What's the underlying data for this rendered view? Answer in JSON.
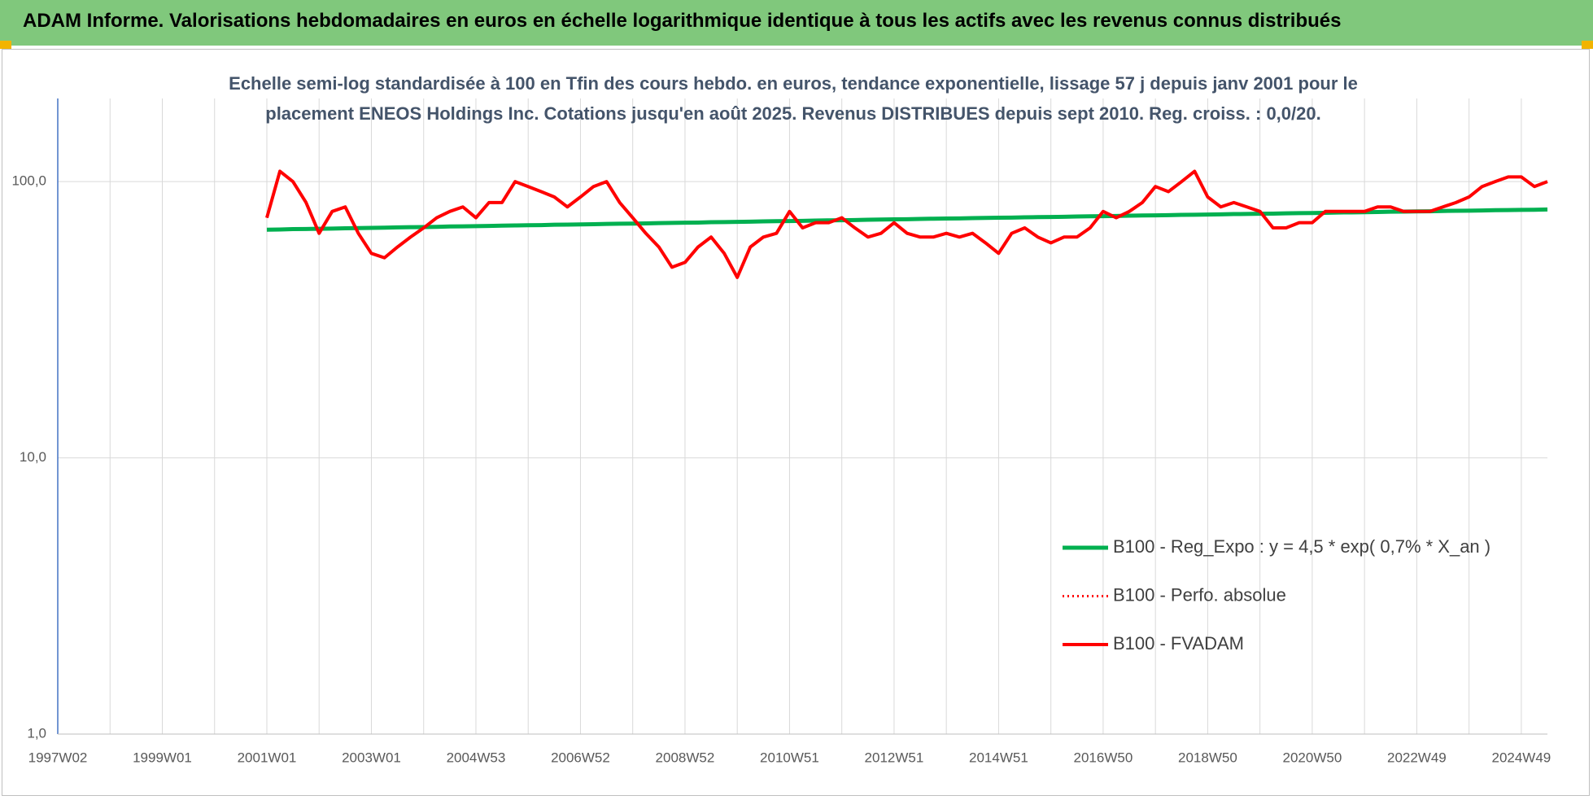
{
  "header": "ADAM Informe. Valorisations hebdomadaires en euros en échelle logarithmique identique à tous les actifs avec les revenus connus distribués",
  "chart_data": {
    "type": "line",
    "title": "Echelle semi-log standardisée à 100 en Tfin des cours hebdo. en euros, tendance exponentielle, lissage 57 j depuis janv 2001 pour le placement ENEOS Holdings Inc. Cotations jusqu'en août 2025. Revenus DISTRIBUES depuis sept 2010. Reg. croiss. : 0,0/20.",
    "log_scale": true,
    "grid": true,
    "legend": "right",
    "ylim": [
      1,
      200
    ],
    "yticks": [
      {
        "value": 1,
        "label": "1,0"
      },
      {
        "value": 10,
        "label": "10,0"
      },
      {
        "value": 100,
        "label": "100,0"
      }
    ],
    "categories": [
      "1997W02",
      null,
      null,
      null,
      null,
      null,
      null,
      null,
      "1999W01",
      null,
      null,
      null,
      null,
      null,
      null,
      null,
      "2001W01",
      null,
      null,
      null,
      null,
      null,
      null,
      null,
      "2003W01",
      null,
      null,
      null,
      null,
      null,
      null,
      null,
      "2004W53",
      null,
      null,
      null,
      null,
      null,
      null,
      null,
      "2006W52",
      null,
      null,
      null,
      null,
      null,
      null,
      null,
      "2008W52",
      null,
      null,
      null,
      null,
      null,
      null,
      null,
      "2010W51",
      null,
      null,
      null,
      null,
      null,
      null,
      null,
      "2012W51",
      null,
      null,
      null,
      null,
      null,
      null,
      null,
      "2014W51",
      null,
      null,
      null,
      null,
      null,
      null,
      null,
      "2016W50",
      null,
      null,
      null,
      null,
      null,
      null,
      null,
      "2018W50",
      null,
      null,
      null,
      null,
      null,
      null,
      null,
      "2020W50",
      null,
      null,
      null,
      null,
      null,
      null,
      null,
      "2022W49",
      null,
      null,
      null,
      null,
      null,
      null,
      null,
      "2024W49",
      null,
      null
    ],
    "series": [
      {
        "name": "B100 - Reg_Expo : y = 4,5 * exp( 0,7% *  X_an )",
        "color": "#00b050",
        "style": "solid",
        "width": 5,
        "values": [
          null,
          null,
          null,
          null,
          null,
          null,
          null,
          null,
          null,
          null,
          null,
          null,
          null,
          null,
          null,
          null,
          67.0,
          67.1,
          67.3,
          67.4,
          67.5,
          67.6,
          67.8,
          67.9,
          68.0,
          68.1,
          68.3,
          68.4,
          68.5,
          68.6,
          68.8,
          68.9,
          69.0,
          69.1,
          69.3,
          69.4,
          69.5,
          69.6,
          69.8,
          69.9,
          70.0,
          70.1,
          70.3,
          70.4,
          70.5,
          70.6,
          70.8,
          70.9,
          71.0,
          71.1,
          71.3,
          71.4,
          71.5,
          71.6,
          71.8,
          71.9,
          72.0,
          72.1,
          72.3,
          72.4,
          72.5,
          72.6,
          72.8,
          72.9,
          73.0,
          73.1,
          73.3,
          73.4,
          73.5,
          73.6,
          73.8,
          73.9,
          74.0,
          74.1,
          74.3,
          74.4,
          74.5,
          74.6,
          74.8,
          74.9,
          75.0,
          75.1,
          75.3,
          75.4,
          75.5,
          75.6,
          75.8,
          75.9,
          76.0,
          76.1,
          76.3,
          76.4,
          76.5,
          76.6,
          76.8,
          76.9,
          77.0,
          77.1,
          77.3,
          77.4,
          77.5,
          77.6,
          77.8,
          77.9,
          78.0,
          78.1,
          78.3,
          78.4,
          78.5,
          78.6,
          78.8,
          78.9,
          79.0,
          79.1,
          79.3
        ]
      },
      {
        "name": "B100 - Perfo. absolue",
        "color": "#ff0000",
        "style": "dotted",
        "width": 3,
        "values": [
          null,
          null,
          null,
          null,
          null,
          null,
          null,
          null,
          null,
          null,
          null,
          null,
          null,
          null,
          null,
          null,
          74,
          109,
          100,
          84,
          65,
          78,
          81,
          65,
          55,
          53,
          58,
          63,
          68,
          74,
          78,
          81,
          74,
          84,
          84,
          100,
          96,
          92,
          88,
          81,
          88,
          96,
          100,
          84,
          74,
          65,
          58,
          49,
          51,
          58,
          63,
          55,
          45,
          58,
          63,
          65,
          78,
          68,
          71,
          71,
          74,
          68,
          63,
          65,
          71,
          65,
          63,
          63,
          65,
          63,
          65,
          60,
          55,
          65,
          68,
          63,
          60,
          63,
          63,
          68,
          78,
          74,
          78,
          84,
          96,
          92,
          100,
          109,
          88,
          81,
          84,
          81,
          78,
          68,
          68,
          71,
          71,
          78,
          78,
          78,
          78,
          81,
          81,
          78,
          78,
          78,
          81,
          84,
          88,
          96,
          100,
          104,
          104,
          96,
          100
        ]
      },
      {
        "name": "B100 - FVADAM",
        "color": "#ff0000",
        "style": "solid",
        "width": 4,
        "values": [
          null,
          null,
          null,
          null,
          null,
          null,
          null,
          null,
          null,
          null,
          null,
          null,
          null,
          null,
          null,
          null,
          74,
          109,
          100,
          84,
          65,
          78,
          81,
          65,
          55,
          53,
          58,
          63,
          68,
          74,
          78,
          81,
          74,
          84,
          84,
          100,
          96,
          92,
          88,
          81,
          88,
          96,
          100,
          84,
          74,
          65,
          58,
          49,
          51,
          58,
          63,
          55,
          45,
          58,
          63,
          65,
          78,
          68,
          71,
          71,
          74,
          68,
          63,
          65,
          71,
          65,
          63,
          63,
          65,
          63,
          65,
          60,
          55,
          65,
          68,
          63,
          60,
          63,
          63,
          68,
          78,
          74,
          78,
          84,
          96,
          92,
          100,
          109,
          88,
          81,
          84,
          81,
          78,
          68,
          68,
          71,
          71,
          78,
          78,
          78,
          78,
          81,
          81,
          78,
          78,
          78,
          81,
          84,
          88,
          96,
          100,
          104,
          104,
          96,
          100
        ]
      }
    ]
  }
}
